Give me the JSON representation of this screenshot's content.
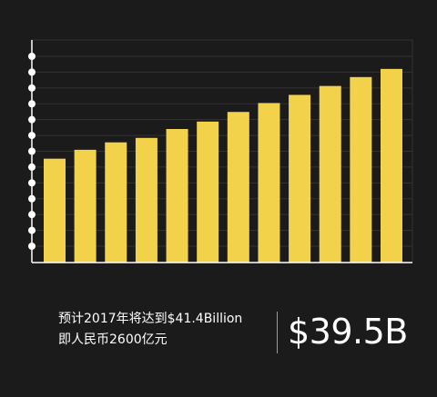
{
  "chart_data": {
    "type": "bar",
    "categories": [
      "",
      "",
      "",
      "",
      "",
      "",
      "",
      "",
      "",
      "",
      "",
      ""
    ],
    "values": [
      14.0,
      15.2,
      16.2,
      16.8,
      18.0,
      19.0,
      20.3,
      21.5,
      22.6,
      23.8,
      25.0,
      26.1
    ],
    "ylim": [
      0,
      30
    ],
    "grid": true,
    "colors": {
      "bar": "#f2d24b",
      "grid": "#333333",
      "axis": "#ffffff",
      "marker": "#ffffff"
    }
  },
  "caption": {
    "line1": "预计2017年将达到$41.4Billion",
    "line2": "即人民币2600亿元"
  },
  "headline_value": "$39.5B"
}
